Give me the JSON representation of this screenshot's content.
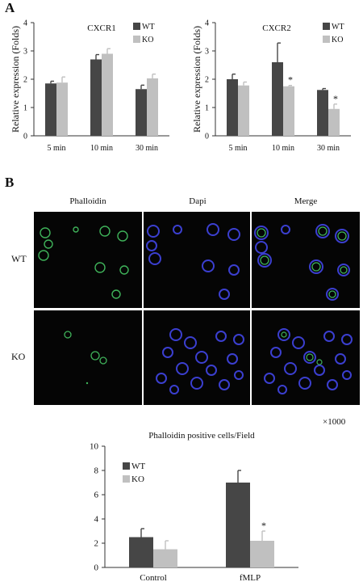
{
  "panel_a_letter": "A",
  "panel_b_letter": "B",
  "microscopy": {
    "columns": [
      "Phalloidin",
      "Dapi",
      "Merge"
    ],
    "rows": [
      "WT",
      "KO"
    ],
    "magnification": "×1000"
  },
  "colors": {
    "wt": "#464646",
    "ko": "#c0c0c0",
    "phalloidin": "#3fb35a",
    "dapi": "#3b3fd0"
  },
  "chart_data": [
    {
      "type": "bar",
      "title": "CXCR1",
      "ylabel": "Relative expression (Folds)",
      "xlabel": "",
      "categories": [
        "5 min",
        "10 min",
        "30 min"
      ],
      "ylim": [
        0,
        4
      ],
      "yticks": [
        "0",
        "1",
        "2",
        "3",
        "4"
      ],
      "legend_position": "top-right",
      "series": [
        {
          "name": "WT",
          "values": [
            1.85,
            2.7,
            1.65
          ],
          "errors": [
            0.08,
            0.17,
            0.14
          ]
        },
        {
          "name": "KO",
          "values": [
            1.88,
            2.9,
            2.03
          ],
          "errors": [
            0.2,
            0.18,
            0.15
          ]
        }
      ],
      "significance": []
    },
    {
      "type": "bar",
      "title": "CXCR2",
      "ylabel": "Relative expression (Folds)",
      "xlabel": "",
      "categories": [
        "5 min",
        "10 min",
        "30 min"
      ],
      "ylim": [
        0,
        4
      ],
      "yticks": [
        "0",
        "1",
        "2",
        "3",
        "4"
      ],
      "legend_position": "top-right",
      "series": [
        {
          "name": "WT",
          "values": [
            2.0,
            2.6,
            1.62
          ],
          "errors": [
            0.18,
            0.68,
            0.05
          ]
        },
        {
          "name": "KO",
          "values": [
            1.78,
            1.75,
            0.95
          ],
          "errors": [
            0.12,
            0.03,
            0.17
          ]
        }
      ],
      "significance": [
        {
          "category": 1,
          "series": 1,
          "label": "*"
        },
        {
          "category": 2,
          "series": 1,
          "label": "*"
        }
      ]
    },
    {
      "type": "bar",
      "title": "Phalloidin positive cells/Field",
      "ylabel": "",
      "xlabel": "",
      "categories": [
        "Control",
        "fMLP"
      ],
      "ylim": [
        0,
        10
      ],
      "yticks": [
        "0",
        "2",
        "4",
        "6",
        "8",
        "10"
      ],
      "legend_position": "top-left",
      "series": [
        {
          "name": "WT",
          "values": [
            2.5,
            7.0
          ],
          "errors": [
            0.7,
            1.0
          ]
        },
        {
          "name": "KO",
          "values": [
            1.5,
            2.2
          ],
          "errors": [
            0.7,
            0.8
          ]
        }
      ],
      "significance": [
        {
          "category": 1,
          "series": 1,
          "label": "*"
        }
      ]
    }
  ]
}
